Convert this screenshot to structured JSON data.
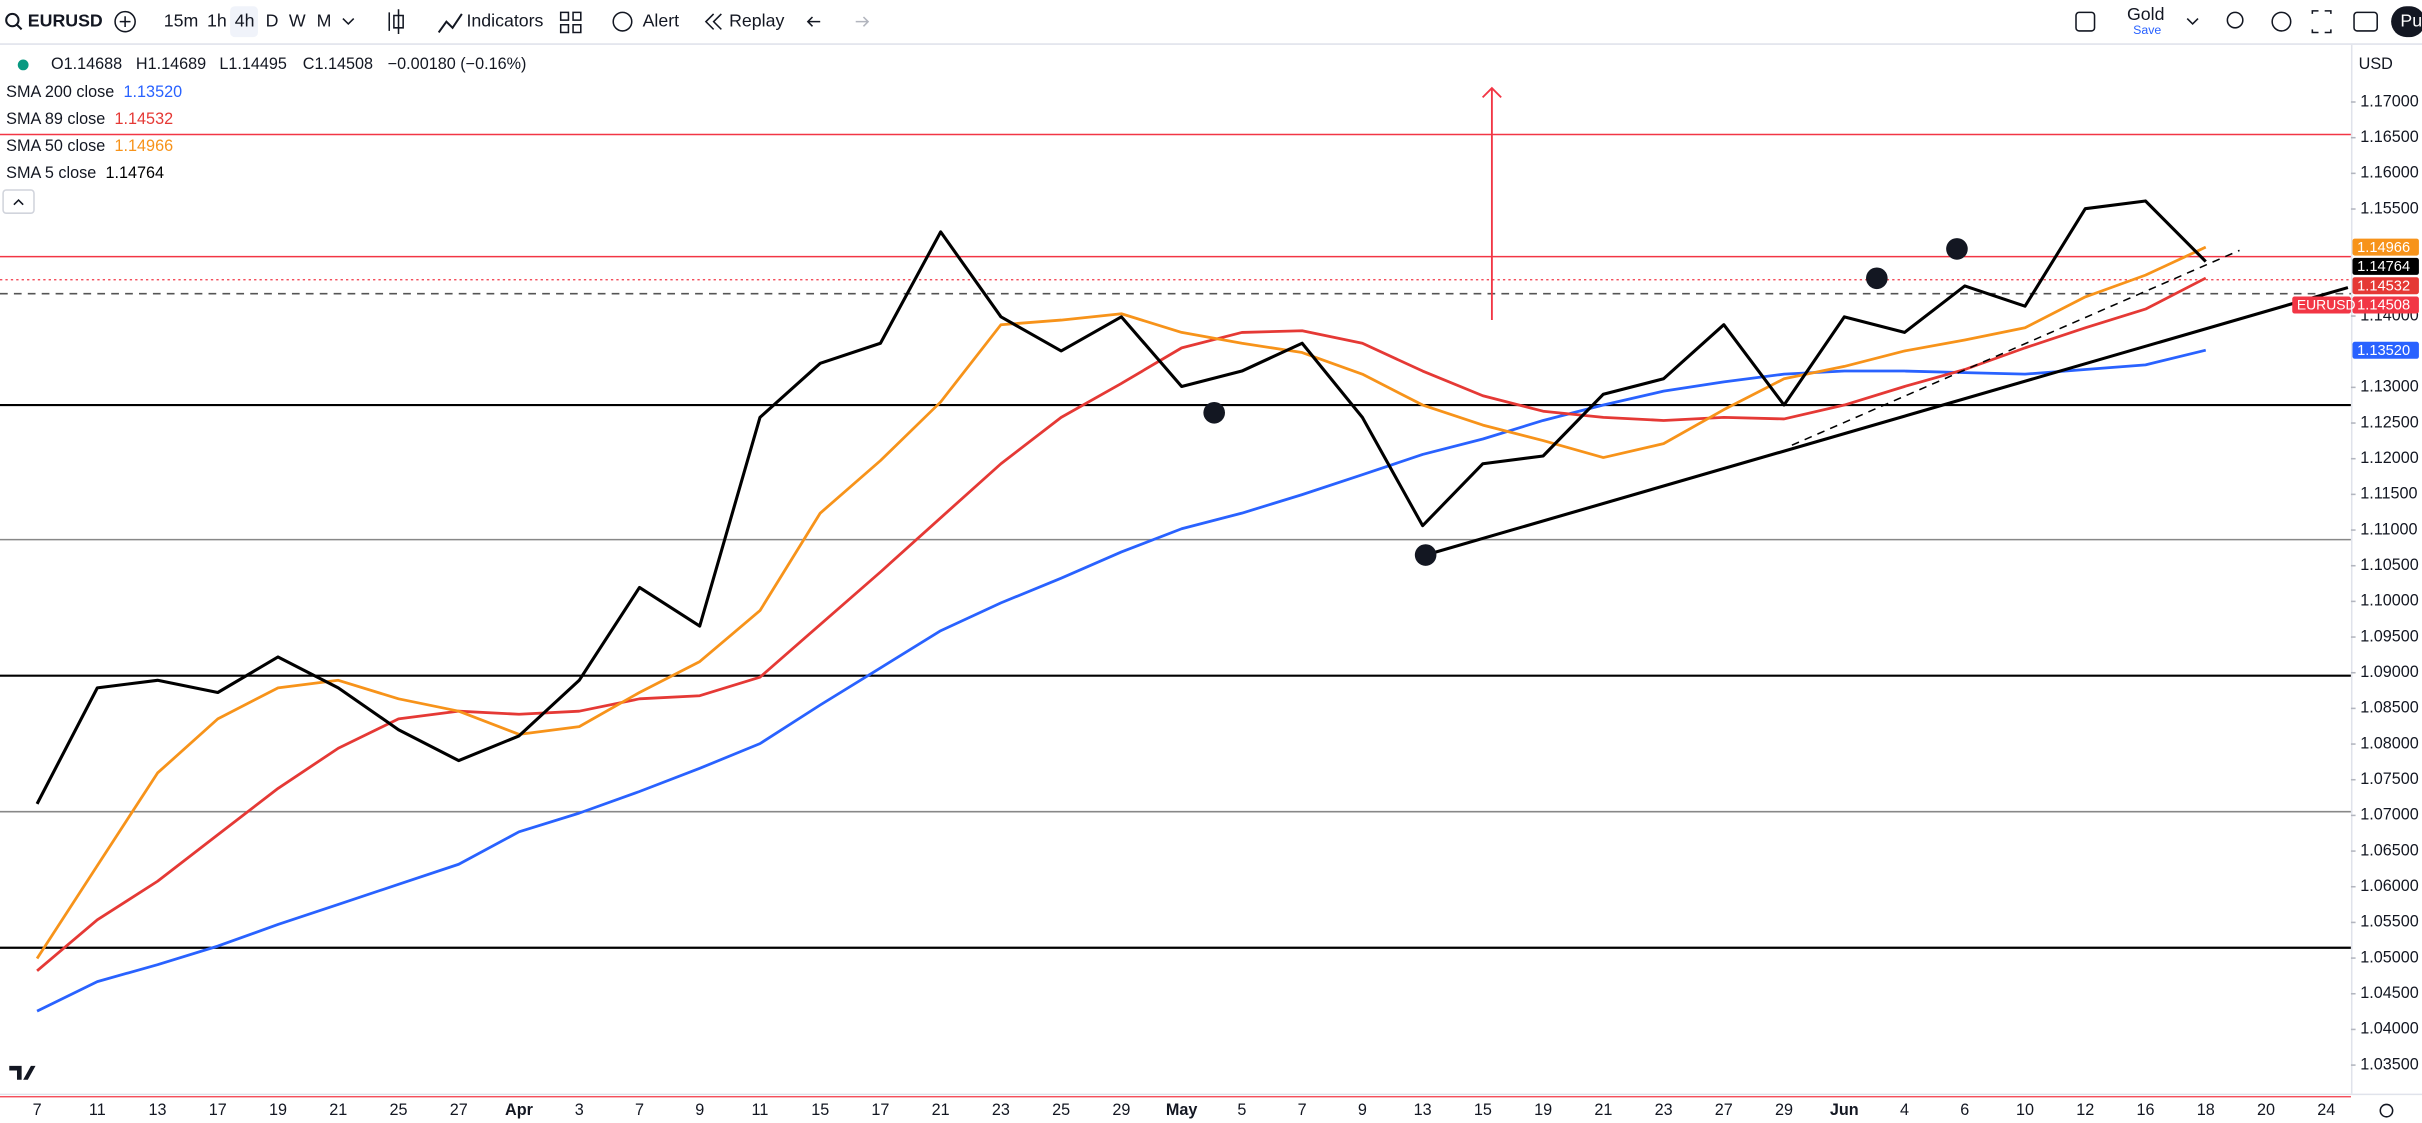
{
  "toolbar": {
    "symbol": "EURUSD",
    "intervals": [
      "15m",
      "1h",
      "4h",
      "D",
      "W",
      "M"
    ],
    "indicators": "Indicators",
    "alert": "Alert",
    "replay": "Replay",
    "account": "Gold",
    "account_sub": "Save",
    "cta": "Pu"
  },
  "chart_data": {
    "type": "line",
    "currency": "USD",
    "ohlc": {
      "open": "O1.14688",
      "high": "H1.14689",
      "low": "L1.14495",
      "close": "C1.14508",
      "change": "−0.00180 (−0.16%)"
    },
    "categories": [
      "7",
      "11",
      "13",
      "17",
      "19",
      "21",
      "25",
      "27",
      "Apr",
      "3",
      "7",
      "9",
      "11",
      "15",
      "17",
      "21",
      "23",
      "25",
      "29",
      "May",
      "5",
      "7",
      "9",
      "13",
      "15",
      "19",
      "21",
      "23",
      "27",
      "29",
      "Jun",
      "4",
      "6",
      "10",
      "12",
      "16",
      "18",
      "20",
      "24"
    ],
    "series": [
      {
        "name": "SMA 200 close",
        "last_label": "1.13520",
        "color": "#2962ff",
        "values": [
          1.04257,
          1.04669,
          1.04908,
          1.05168,
          1.05471,
          1.05753,
          1.06034,
          1.06316,
          1.06771,
          1.07031,
          1.07335,
          1.0766,
          1.08007,
          1.08548,
          1.09068,
          1.09589,
          1.09979,
          1.10325,
          1.10694,
          1.11019,
          1.11236,
          1.11496,
          1.11777,
          1.12059,
          1.12276,
          1.12536,
          1.12752,
          1.12947,
          1.13078,
          1.13186,
          1.13229,
          1.13229,
          1.13208,
          1.13186,
          1.13251,
          1.13316,
          1.1352,
          null,
          null
        ]
      },
      {
        "name": "SMA 89 close",
        "last_label": "1.14532",
        "color": "#e53935",
        "values": [
          1.04821,
          1.05536,
          1.06078,
          1.06728,
          1.07378,
          1.07942,
          1.08353,
          1.08462,
          1.08418,
          1.08462,
          1.08635,
          1.08678,
          1.08938,
          1.09675,
          1.10412,
          1.11171,
          1.11929,
          1.12579,
          1.13056,
          1.13554,
          1.13771,
          1.13793,
          1.13619,
          1.13229,
          1.12883,
          1.12666,
          1.12579,
          1.12536,
          1.12579,
          1.12557,
          1.12752,
          1.13013,
          1.13251,
          1.13554,
          1.13836,
          1.14096,
          1.14532,
          null,
          null
        ]
      },
      {
        "name": "SMA 50 close",
        "last_label": "1.14966",
        "color": "#f7931a",
        "values": [
          1.04994,
          1.06295,
          1.07595,
          1.08353,
          1.08787,
          1.08895,
          1.08635,
          1.08462,
          1.08137,
          1.08245,
          1.08722,
          1.09155,
          1.0987,
          1.11236,
          1.11972,
          1.12796,
          1.13879,
          1.13944,
          1.14031,
          1.13771,
          1.13619,
          1.13489,
          1.13186,
          1.12752,
          1.12471,
          1.12254,
          1.12016,
          1.12211,
          1.12687,
          1.13121,
          1.13294,
          1.13511,
          1.13663,
          1.13836,
          1.14269,
          1.14573,
          1.14966,
          null,
          null
        ]
      },
      {
        "name": "SMA 5 close",
        "last_label": "1.14764",
        "color": "#000000",
        "values": [
          1.07161,
          1.08787,
          1.08895,
          1.08722,
          1.0922,
          1.08787,
          1.08202,
          1.07768,
          1.08115,
          1.08895,
          1.10195,
          1.09654,
          1.12579,
          1.13338,
          1.13619,
          1.1518,
          1.13988,
          1.13511,
          1.13988,
          1.13013,
          1.13229,
          1.13619,
          1.12579,
          1.11062,
          1.11929,
          1.12037,
          1.12904,
          1.13121,
          1.13879,
          1.12752,
          1.13988,
          1.13771,
          1.14421,
          1.14139,
          1.15505,
          1.15613,
          1.14764,
          null,
          null
        ]
      }
    ],
    "price_badge": {
      "name": "EURUSD",
      "label": "1.14508",
      "value": 1.14508,
      "color": "#f23645"
    },
    "ylim": [
      1.031,
      1.1778
    ],
    "yticks": [
      {
        "value": 1.035,
        "label": "1.03500"
      },
      {
        "value": 1.04,
        "label": "1.04000"
      },
      {
        "value": 1.045,
        "label": "1.04500"
      },
      {
        "value": 1.05,
        "label": "1.05000"
      },
      {
        "value": 1.055,
        "label": "1.05500"
      },
      {
        "value": 1.06,
        "label": "1.06000"
      },
      {
        "value": 1.065,
        "label": "1.06500"
      },
      {
        "value": 1.07,
        "label": "1.07000"
      },
      {
        "value": 1.075,
        "label": "1.07500"
      },
      {
        "value": 1.08,
        "label": "1.08000"
      },
      {
        "value": 1.085,
        "label": "1.08500"
      },
      {
        "value": 1.09,
        "label": "1.09000"
      },
      {
        "value": 1.095,
        "label": "1.09500"
      },
      {
        "value": 1.1,
        "label": "1.10000"
      },
      {
        "value": 1.105,
        "label": "1.10500"
      },
      {
        "value": 1.11,
        "label": "1.11000"
      },
      {
        "value": 1.115,
        "label": "1.11500"
      },
      {
        "value": 1.12,
        "label": "1.12000"
      },
      {
        "value": 1.125,
        "label": "1.12500"
      },
      {
        "value": 1.13,
        "label": "1.13000"
      },
      {
        "value": 1.14,
        "label": "1.14000"
      },
      {
        "value": 1.155,
        "label": "1.15500"
      },
      {
        "value": 1.16,
        "label": "1.16000"
      },
      {
        "value": 1.165,
        "label": "1.16500"
      },
      {
        "value": 1.17,
        "label": "1.17000"
      }
    ],
    "grid": false,
    "hlines": [
      {
        "value": 1.16545,
        "color": "#f23645",
        "style": "solid"
      },
      {
        "value": 1.14833,
        "color": "#f23645",
        "style": "solid"
      },
      {
        "value": 1.14313,
        "color": "#555555",
        "style": "dashed"
      },
      {
        "value": 1.12752,
        "color": "#000000",
        "style": "solid"
      },
      {
        "value": 1.10866,
        "color": "#888888",
        "style": "solid"
      },
      {
        "value": 1.08959,
        "color": "#000000",
        "style": "solid"
      },
      {
        "value": 1.07052,
        "color": "#888888",
        "style": "solid"
      },
      {
        "value": 1.05145,
        "color": "#000000",
        "style": "solid"
      }
    ],
    "points": [
      {
        "x": 19.54,
        "y": 1.12644
      },
      {
        "x": 23.05,
        "y": 1.1065
      },
      {
        "x": 30.54,
        "y": 1.14529
      },
      {
        "x": 31.87,
        "y": 1.14941
      }
    ],
    "trendlines": [
      {
        "x": [
          23.05,
          38.36
        ],
        "y": [
          1.1065,
          1.14399
        ],
        "style": "solid",
        "color": "#000000"
      },
      {
        "x": [
          29.13,
          36.56
        ],
        "y": [
          1.12189,
          1.1492
        ],
        "style": "dashed",
        "color": "#000000"
      }
    ],
    "arrow": {
      "x": 24.15,
      "y": [
        1.13944,
        1.17195
      ],
      "color": "#f23645"
    }
  }
}
